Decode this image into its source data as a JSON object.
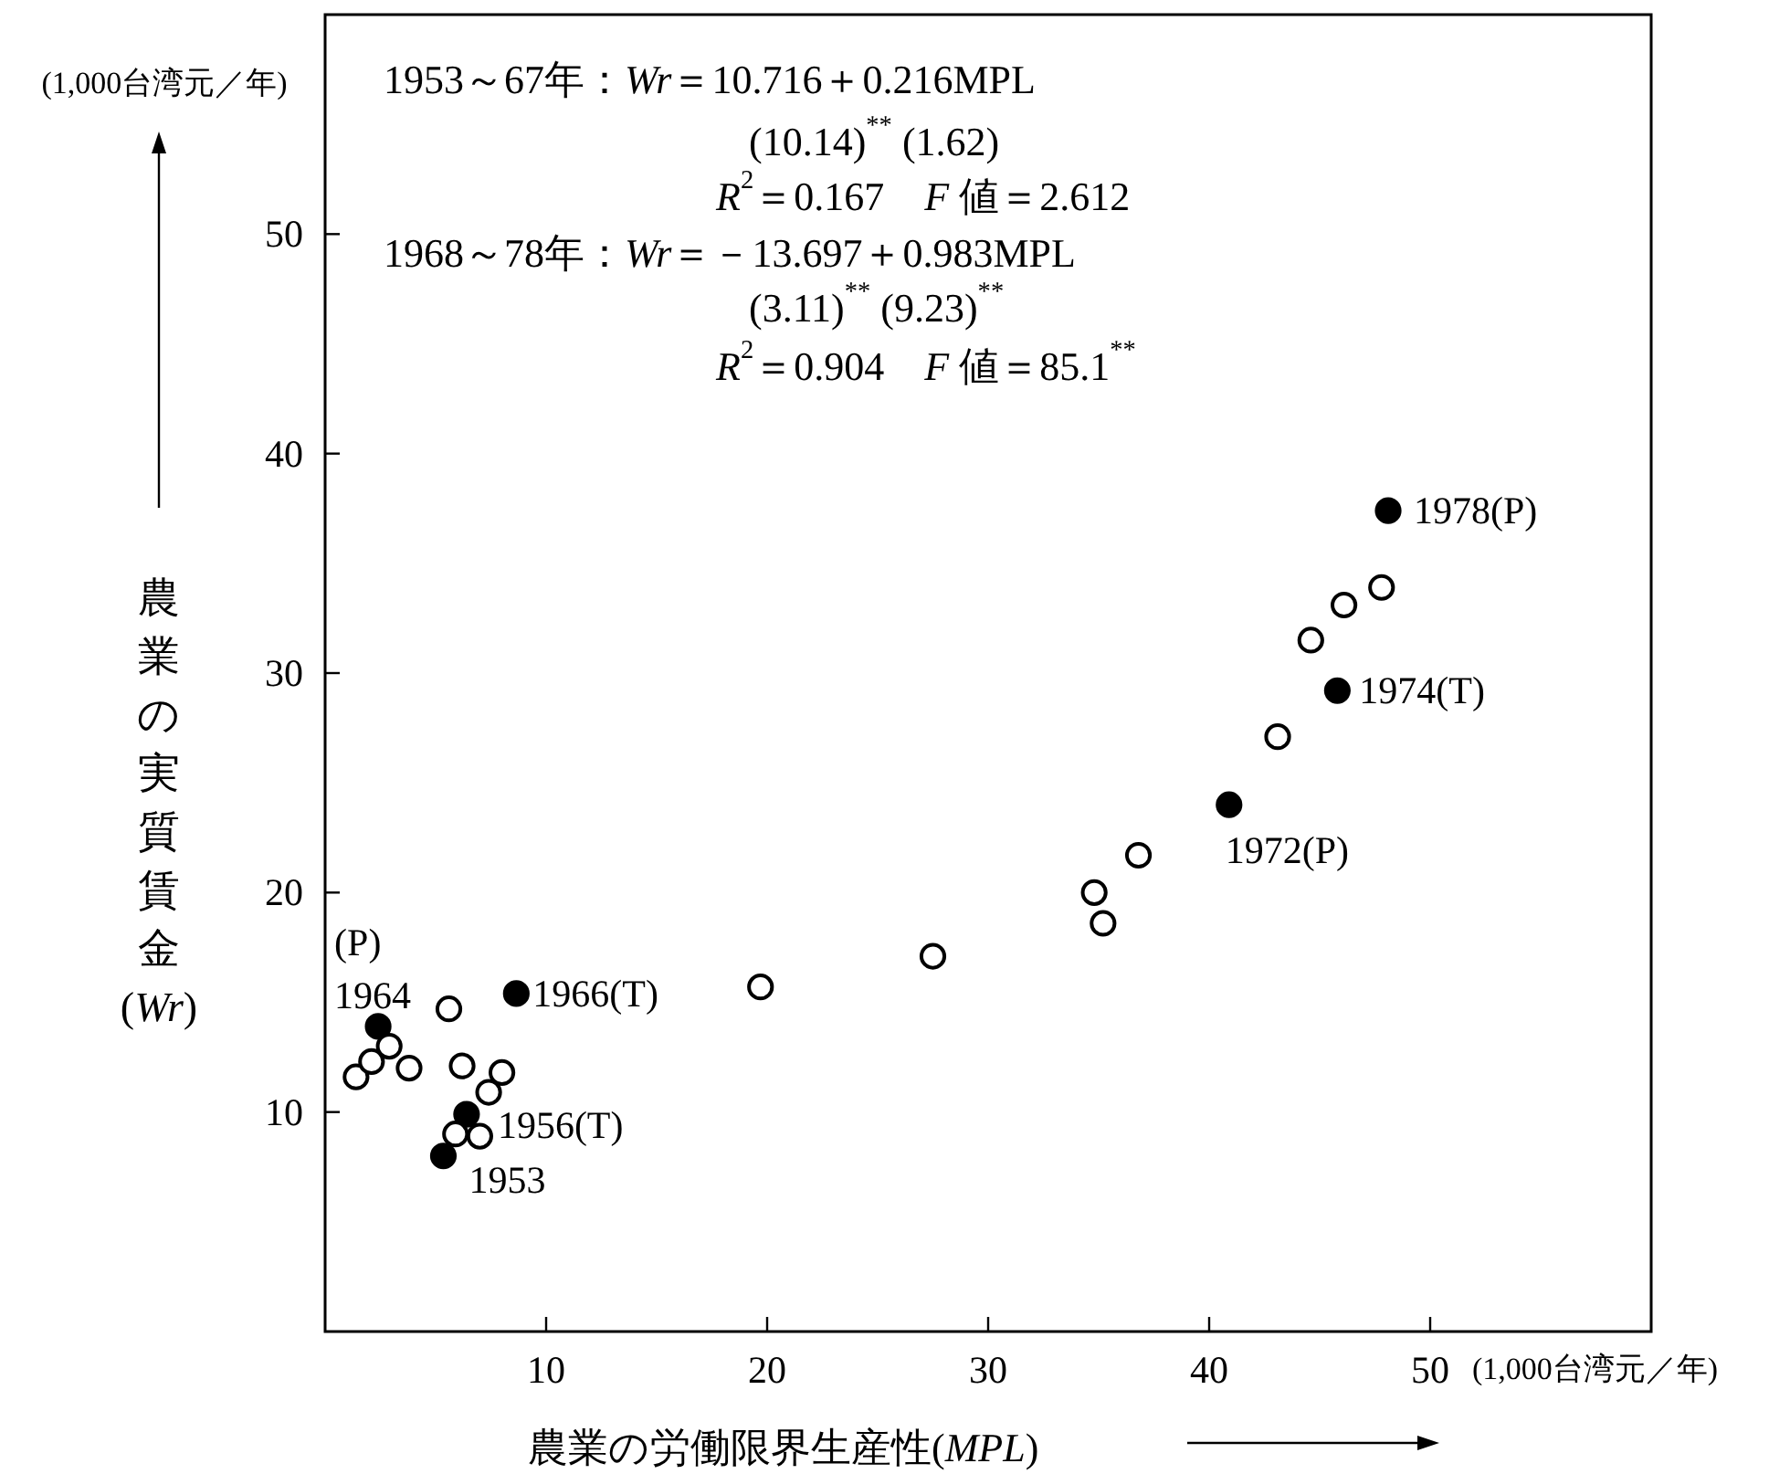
{
  "chart_data": {
    "type": "scatter",
    "xlabel": "農業の労働限界生産性(*MPL*)",
    "ylabel": "農業の実質賃金(*Wr*)",
    "xlim": [
      0,
      60
    ],
    "ylim": [
      0,
      60
    ],
    "xticks": [
      10,
      20,
      30,
      40,
      50
    ],
    "yticks": [
      10,
      20,
      30,
      40,
      50
    ],
    "marker": "circle",
    "series": [
      {
        "color": "#000000",
        "x": [
          5.35,
          6.4,
          2.4,
          8.65,
          40.9,
          45.8,
          48.1
        ],
        "values": [
          8.0,
          9.9,
          13.9,
          15.4,
          24.0,
          29.2,
          37.4
        ]
      },
      {
        "color": "#ffffff",
        "x": [
          1.4,
          2.1,
          2.9,
          3.8,
          5.6,
          5.9,
          6.2,
          7.0,
          7.4,
          8.0,
          19.7,
          27.5,
          34.8,
          35.2,
          36.8,
          43.1,
          44.6,
          46.1,
          47.8
        ],
        "values": [
          11.6,
          12.3,
          13.0,
          12.0,
          14.7,
          9.0,
          12.1,
          8.9,
          10.9,
          11.8,
          15.7,
          17.1,
          20.0,
          18.6,
          21.7,
          27.1,
          31.5,
          33.1,
          33.9
        ]
      }
    ],
    "annotations": [
      "1953～67年：*Wr*＝10.716＋0.216MPL",
      "(10.14)$^{**}$ (1.62)",
      "*R*$^{2}$＝0.167　*F* 値＝2.612",
      "1968～78年：*Wr*＝－13.697＋0.983MPL",
      "(3.11)$^{**}$ (9.23)$^{**}$",
      "*R*$^{2}$＝0.904　*F* 値＝85.1$^{**}$",
      "(1,000台湾元／年)",
      "(1,000台湾元／年)",
      {
        "text": "1978(P)",
        "x": 48.1,
        "y": 37.4
      },
      {
        "text": "1974(T)",
        "x": 45.8,
        "y": 29.2
      },
      {
        "text": "1972(P)",
        "x": 40.9,
        "y": 24.0
      },
      {
        "text": "1966(T)",
        "x": 8.65,
        "y": 15.4
      },
      {
        "text": "1956(T)",
        "x": 6.4,
        "y": 9.9
      },
      {
        "text": "1953",
        "x": 5.35,
        "y": 8.0
      },
      {
        "text": "1964",
        "x": 2.4,
        "y": 13.9
      },
      {
        "text": "(P)",
        "x": 2.4,
        "y": 13.9
      }
    ]
  }
}
